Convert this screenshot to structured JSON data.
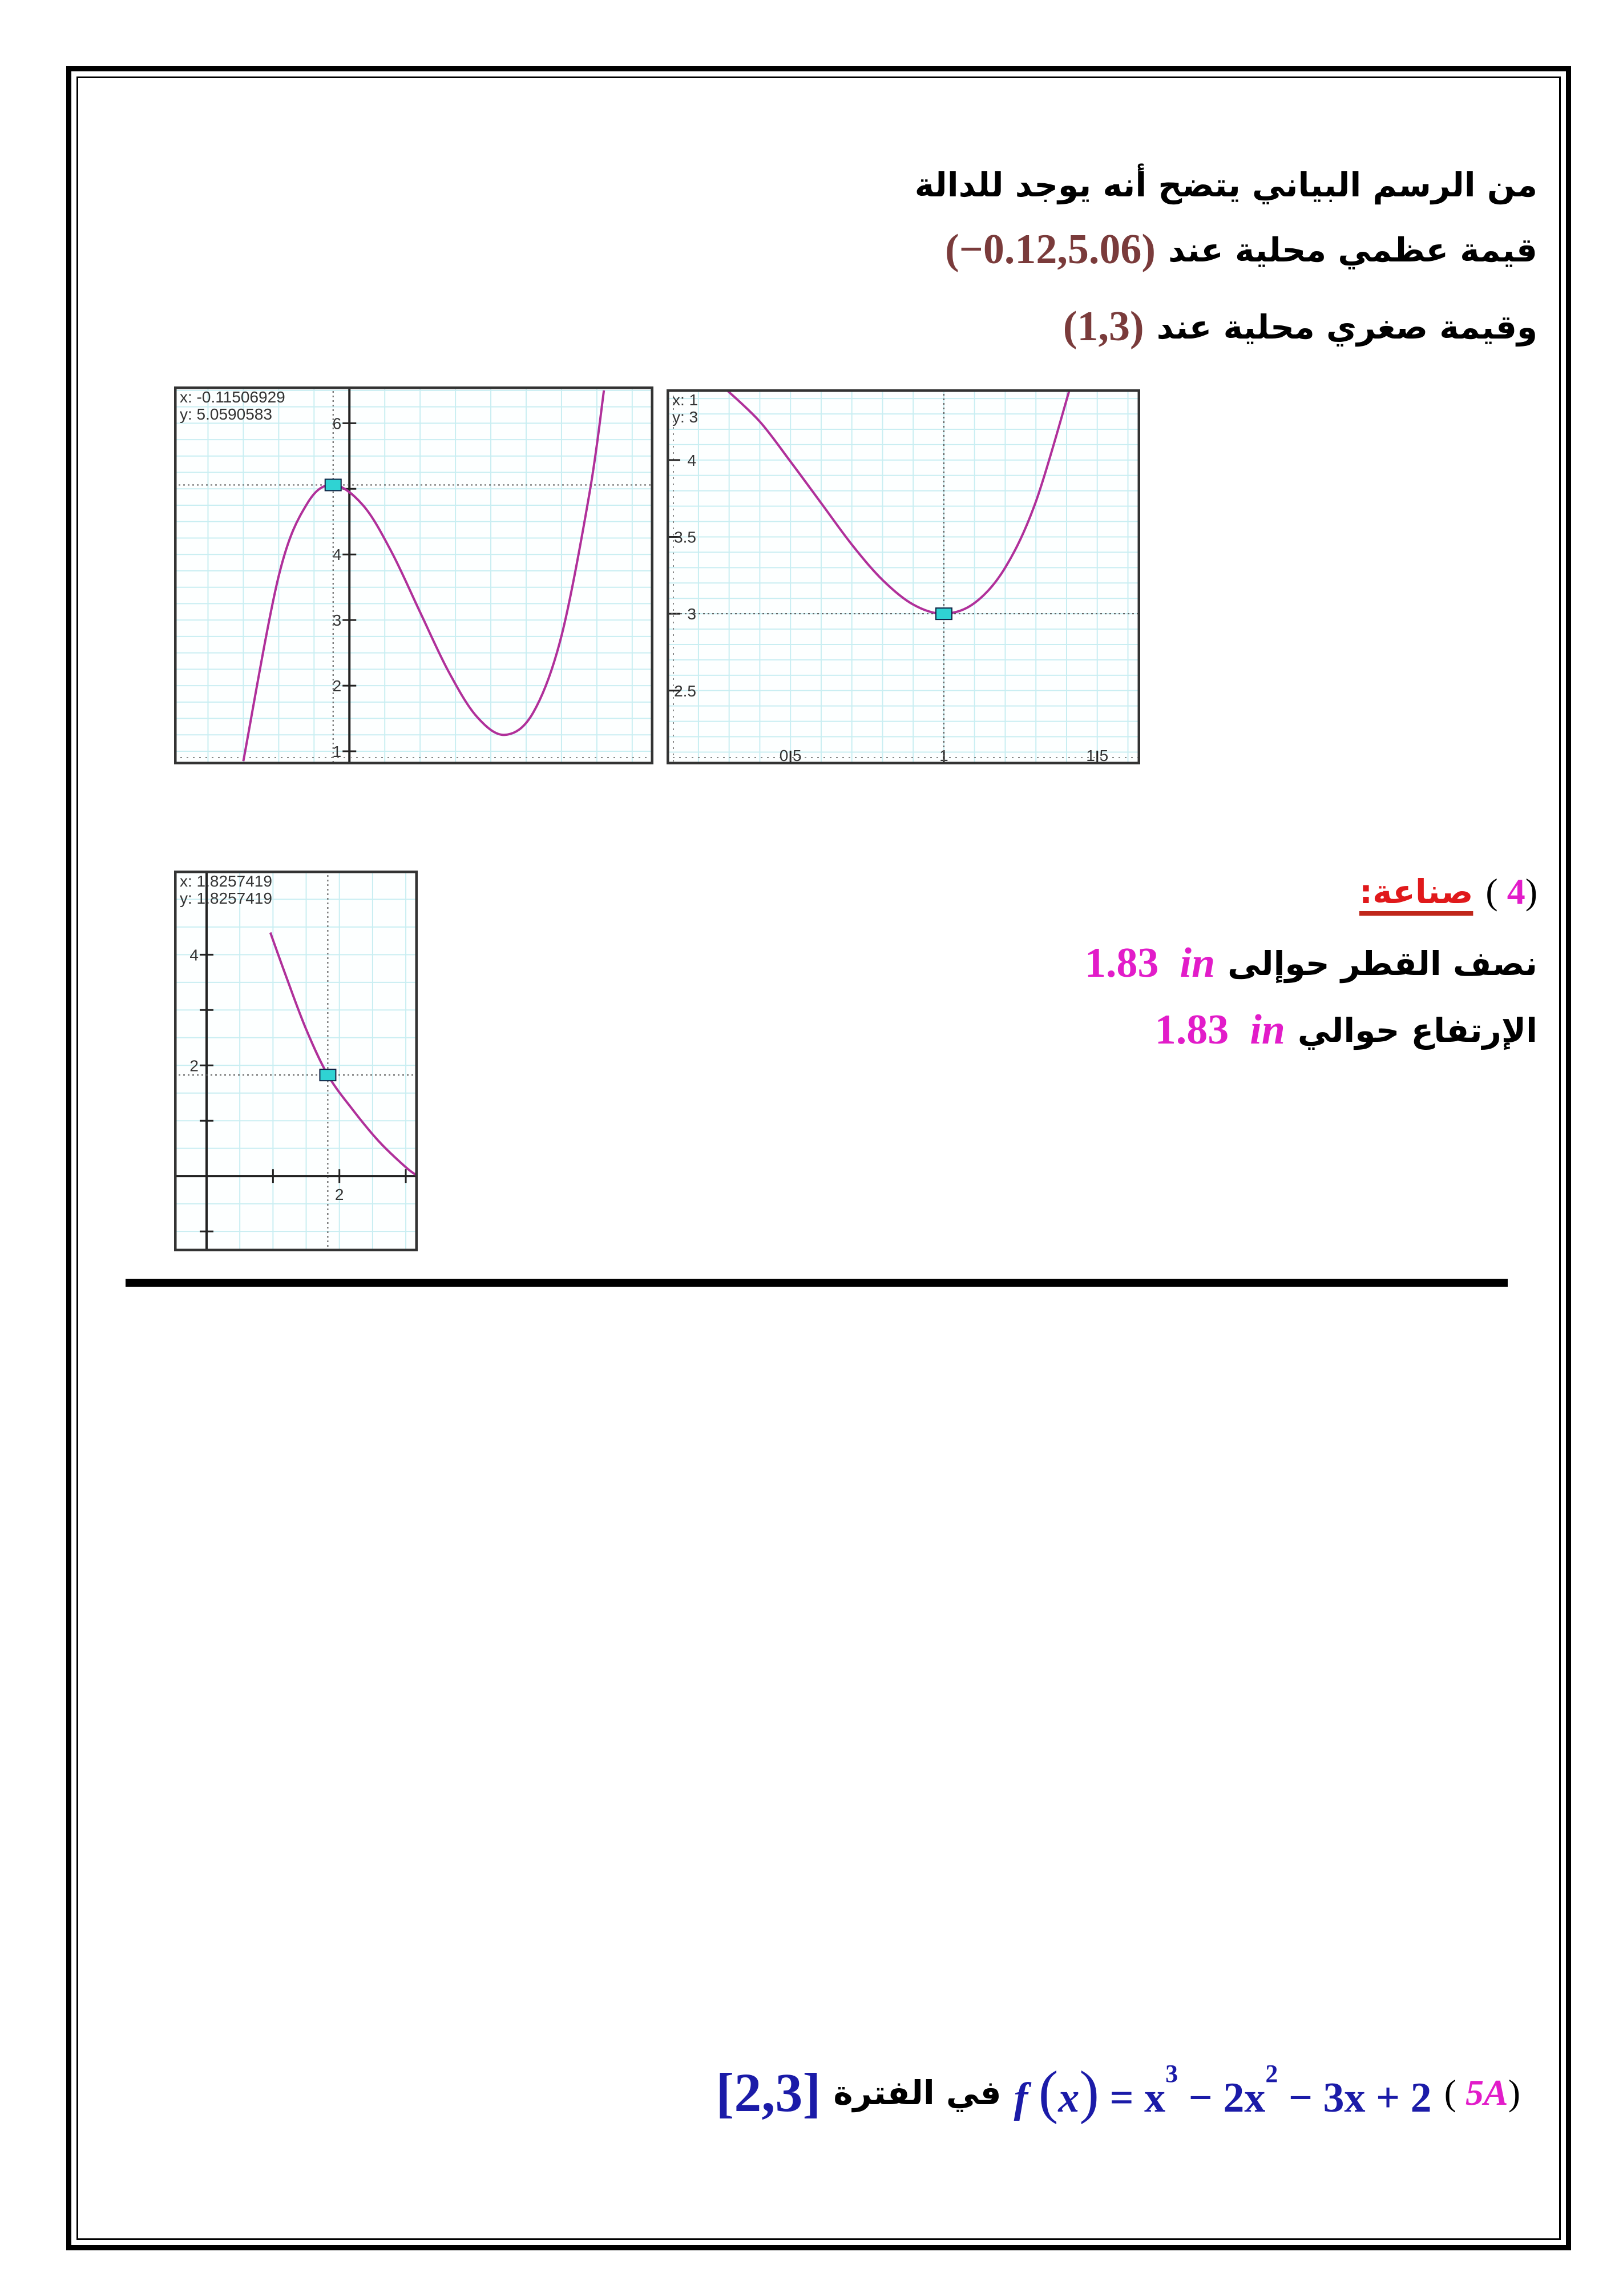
{
  "section3": {
    "line1": "من الرسم البياني يتضح أنه يوجد للدالة",
    "line2_text": "قيمة عظمي محلية عند",
    "line2_value": "(−0.12,5.06)",
    "line3_text": "وقيمة صغري محلية عند",
    "line3_value": "(1,3)"
  },
  "section4": {
    "number": "4",
    "heading": "صناعة:",
    "radius_text": "نصف القطر حوإلى",
    "radius_value": "1.83",
    "radius_unit": "in",
    "height_text": "الإرتفاع حوالي",
    "height_value": "1.83",
    "height_unit": "in"
  },
  "section5": {
    "number": "5A",
    "function_lhs": "f",
    "function_arg": "x",
    "function_rhs_parts": [
      "= x",
      "3",
      " − 2x",
      "2",
      " − 3x + 2"
    ],
    "interval_text": "في الفترة",
    "interval": "[2,3]"
  },
  "colors": {
    "curve": "#b0309a",
    "grid": "#c9eef2",
    "marker": "#2fd3d3",
    "maroon": "#7a3b3b",
    "magenta": "#e21cc9",
    "blue": "#1b1ba8",
    "red": "#e0191b"
  },
  "chart_data": [
    {
      "type": "line",
      "readout": {
        "x": "x: -0.11506929",
        "y": "y: 5.0590583"
      },
      "xlim": [
        -1.24,
        2.15
      ],
      "ylim": [
        0.8,
        6.56
      ],
      "grid": true,
      "grid_step": [
        0.25,
        0.25
      ],
      "yticks": [
        1,
        2,
        3,
        4,
        5,
        6
      ],
      "ytick_labels": [
        "1",
        "2",
        "3",
        "4",
        "",
        "6"
      ],
      "xticks": [],
      "xtick_labels": [],
      "cursor": [
        -0.11506929,
        5.0590583
      ],
      "points": [
        [
          -0.75,
          0.85
        ],
        [
          -0.5,
          3.67
        ],
        [
          -0.3,
          4.77
        ],
        [
          -0.115,
          5.06
        ],
        [
          0.1,
          4.74
        ],
        [
          0.3,
          4.03
        ],
        [
          0.5,
          3.12
        ],
        [
          0.7,
          2.22
        ],
        [
          0.9,
          1.53
        ],
        [
          1.1,
          1.25
        ],
        [
          1.3,
          1.59
        ],
        [
          1.5,
          2.76
        ],
        [
          1.7,
          4.96
        ],
        [
          1.8,
          6.5
        ]
      ]
    },
    {
      "type": "line",
      "readout": {
        "x": "x: 1",
        "y": "y: 3"
      },
      "xlim": [
        0.096,
        1.64
      ],
      "ylim": [
        2.02,
        4.46
      ],
      "grid": true,
      "grid_step": [
        0.1,
        0.1
      ],
      "yticks": [
        2.5,
        3,
        3.5,
        4
      ],
      "ytick_labels": [
        "2.5",
        "3",
        "3.5",
        "4"
      ],
      "xticks": [
        0.5,
        1,
        1.5
      ],
      "xtick_labels": [
        "0.5",
        "1",
        "1.5"
      ],
      "cursor": [
        1,
        3
      ],
      "points": [
        [
          0.29,
          4.46
        ],
        [
          0.4,
          4.25
        ],
        [
          0.5,
          3.99
        ],
        [
          0.6,
          3.72
        ],
        [
          0.7,
          3.45
        ],
        [
          0.8,
          3.22
        ],
        [
          0.9,
          3.06
        ],
        [
          1,
          3
        ],
        [
          1.1,
          3.07
        ],
        [
          1.2,
          3.3
        ],
        [
          1.3,
          3.73
        ],
        [
          1.41,
          4.46
        ]
      ]
    },
    {
      "type": "line",
      "readout": {
        "x": "x: 1.8257419",
        "y": "y: 1.8257419"
      },
      "xlim": [
        -0.49,
        3.18
      ],
      "ylim": [
        -1.36,
        5.52
      ],
      "grid": true,
      "grid_step": [
        0.5,
        0.5
      ],
      "yticks": [
        -1,
        1,
        2,
        3,
        4
      ],
      "ytick_labels": [
        "",
        "",
        "2",
        "",
        "4"
      ],
      "xticks": [
        1,
        2,
        3
      ],
      "xtick_labels": [
        "",
        "2",
        ""
      ],
      "cursor": [
        1.8257419,
        1.8257419
      ],
      "points": [
        [
          0.96,
          4.4
        ],
        [
          1.2,
          3.6
        ],
        [
          1.5,
          2.65
        ],
        [
          1.8257,
          1.8257
        ],
        [
          2.2,
          1.2
        ],
        [
          2.6,
          0.62
        ],
        [
          3.0,
          0.16
        ],
        [
          3.18,
          0
        ]
      ]
    }
  ]
}
